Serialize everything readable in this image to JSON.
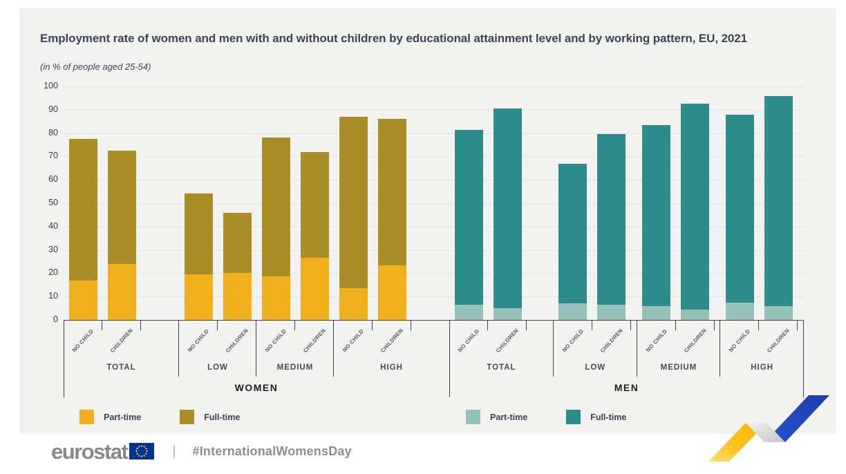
{
  "header": {
    "title": "Employment rate of women and men with and without children by educational attainment level and by working pattern, EU, 2021",
    "subtitle": "(in % of people aged 25-54)"
  },
  "chart_data": {
    "type": "bar",
    "stacked": true,
    "title": "Employment rate of women and men with and without children by educational attainment level and by working pattern, EU, 2021",
    "unit": "% of people aged 25-54",
    "ylim": [
      0,
      100
    ],
    "yticks": [
      0,
      10,
      20,
      30,
      40,
      50,
      60,
      70,
      80,
      90,
      100
    ],
    "grid": "dotted horizontal",
    "legend_position": "bottom, one legend per gender section",
    "series_names": [
      "Part-time",
      "Full-time"
    ],
    "bar_categories": [
      "NO CHILD",
      "CHILDREN"
    ],
    "sections": [
      {
        "label": "WOMEN",
        "colors": {
          "part_time": "#F0B01E",
          "full_time": "#A98E28"
        },
        "groups": [
          {
            "label": "TOTAL",
            "bars": [
              {
                "label": "NO CHILD",
                "part_time": 17,
                "full_time": 60.5,
                "total": 77.5
              },
              {
                "label": "CHILDREN",
                "part_time": 24,
                "full_time": 48.5,
                "total": 72.5
              }
            ]
          },
          {
            "label": "LOW",
            "bars": [
              {
                "label": "NO CHILD",
                "part_time": 19.5,
                "full_time": 34.5,
                "total": 54
              },
              {
                "label": "CHILDREN",
                "part_time": 20,
                "full_time": 26,
                "total": 46
              }
            ]
          },
          {
            "label": "MEDIUM",
            "bars": [
              {
                "label": "NO CHILD",
                "part_time": 18.5,
                "full_time": 59.5,
                "total": 78
              },
              {
                "label": "CHILDREN",
                "part_time": 26.5,
                "full_time": 45.5,
                "total": 72
              }
            ]
          },
          {
            "label": "HIGH",
            "bars": [
              {
                "label": "NO CHILD",
                "part_time": 13.5,
                "full_time": 73.5,
                "total": 87
              },
              {
                "label": "CHILDREN",
                "part_time": 23.5,
                "full_time": 62.5,
                "total": 86
              }
            ]
          }
        ]
      },
      {
        "label": "MEN",
        "colors": {
          "part_time": "#95C1BB",
          "full_time": "#2E8C8C"
        },
        "groups": [
          {
            "label": "TOTAL",
            "bars": [
              {
                "label": "NO CHILD",
                "part_time": 6.5,
                "full_time": 75,
                "total": 81.5
              },
              {
                "label": "CHILDREN",
                "part_time": 5,
                "full_time": 85.5,
                "total": 90.5
              }
            ]
          },
          {
            "label": "LOW",
            "bars": [
              {
                "label": "NO CHILD",
                "part_time": 7,
                "full_time": 60,
                "total": 67
              },
              {
                "label": "CHILDREN",
                "part_time": 6.5,
                "full_time": 73,
                "total": 79.5
              }
            ]
          },
          {
            "label": "MEDIUM",
            "bars": [
              {
                "label": "NO CHILD",
                "part_time": 6,
                "full_time": 77.5,
                "total": 83.5
              },
              {
                "label": "CHILDREN",
                "part_time": 4.5,
                "full_time": 88,
                "total": 92.5
              }
            ]
          },
          {
            "label": "HIGH",
            "bars": [
              {
                "label": "NO CHILD",
                "part_time": 7.5,
                "full_time": 80.5,
                "total": 88
              },
              {
                "label": "CHILDREN",
                "part_time": 6,
                "full_time": 90,
                "total": 96
              }
            ]
          }
        ]
      }
    ]
  },
  "footer": {
    "brand": "eurostat",
    "separator": "|",
    "hashtag": "#InternationalWomensDay"
  },
  "decoration": {
    "swoosh_yellow": "#F8C21C",
    "swoosh_gray": "#D9D9DE",
    "swoosh_blue": "#2146BE",
    "eu_flag_blue": "#003399",
    "eu_flag_stars": "#FFCC00"
  }
}
